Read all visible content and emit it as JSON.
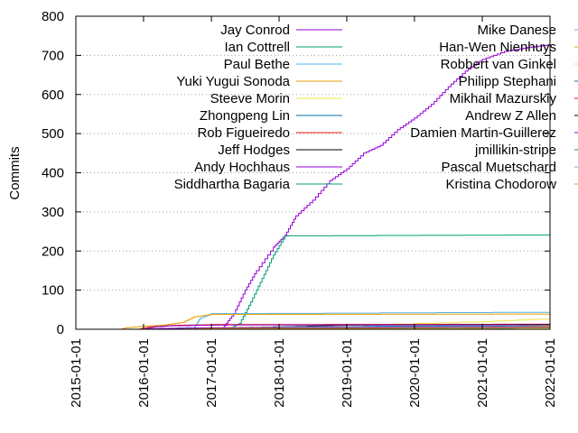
{
  "chart_data": {
    "type": "line",
    "title": "",
    "xlabel": "",
    "ylabel": "Commits",
    "x_ticks": [
      "2015-01-01",
      "2016-01-01",
      "2017-01-01",
      "2018-01-01",
      "2019-01-01",
      "2020-01-01",
      "2021-01-01",
      "2022-01-01"
    ],
    "xlim": [
      "2015-01-01",
      "2022-01-01"
    ],
    "ylim": [
      0,
      800
    ],
    "y_ticks": [
      0,
      100,
      200,
      300,
      400,
      500,
      600,
      700,
      800
    ],
    "grid": "horizontal dotted",
    "legend_placement": "top, two columns",
    "series": [
      {
        "name": "Jay Conrod",
        "color": "#9400d3",
        "points": [
          [
            "2016-01-01",
            0
          ],
          [
            "2016-09-01",
            1
          ],
          [
            "2017-03-01",
            3
          ],
          [
            "2017-05-01",
            40
          ],
          [
            "2017-07-01",
            100
          ],
          [
            "2017-09-01",
            150
          ],
          [
            "2017-12-01",
            210
          ],
          [
            "2018-02-01",
            240
          ],
          [
            "2018-04-01",
            290
          ],
          [
            "2018-07-01",
            330
          ],
          [
            "2018-10-01",
            380
          ],
          [
            "2019-01-01",
            410
          ],
          [
            "2019-04-01",
            450
          ],
          [
            "2019-07-01",
            470
          ],
          [
            "2019-10-01",
            510
          ],
          [
            "2020-01-01",
            540
          ],
          [
            "2020-04-01",
            575
          ],
          [
            "2020-07-01",
            620
          ],
          [
            "2020-10-01",
            660
          ],
          [
            "2021-01-01",
            690
          ],
          [
            "2021-05-01",
            710
          ],
          [
            "2021-09-01",
            720
          ],
          [
            "2022-01-01",
            727
          ]
        ]
      },
      {
        "name": "Ian Cottrell",
        "color": "#009e73",
        "points": [
          [
            "2016-01-01",
            0
          ],
          [
            "2017-04-01",
            0
          ],
          [
            "2017-06-01",
            15
          ],
          [
            "2017-08-01",
            70
          ],
          [
            "2017-10-01",
            130
          ],
          [
            "2017-12-01",
            190
          ],
          [
            "2018-02-01",
            238
          ],
          [
            "2018-03-01",
            239
          ],
          [
            "2022-01-01",
            241
          ]
        ]
      },
      {
        "name": "Paul Bethe",
        "color": "#56b4e9",
        "points": [
          [
            "2016-01-01",
            0
          ],
          [
            "2016-10-01",
            5
          ],
          [
            "2016-11-01",
            28
          ],
          [
            "2017-01-01",
            40
          ],
          [
            "2022-01-01",
            44
          ]
        ]
      },
      {
        "name": "Yuki Yugui Sonoda",
        "color": "#e69f00",
        "points": [
          [
            "2015-09-01",
            0
          ],
          [
            "2015-10-01",
            4
          ],
          [
            "2016-01-01",
            8
          ],
          [
            "2016-04-01",
            10
          ],
          [
            "2016-08-01",
            18
          ],
          [
            "2016-10-01",
            32
          ],
          [
            "2017-01-01",
            38
          ],
          [
            "2022-01-01",
            39
          ]
        ]
      },
      {
        "name": "Steeve Morin",
        "color": "#f0e442",
        "points": [
          [
            "2015-09-01",
            0
          ],
          [
            "2016-06-01",
            2
          ],
          [
            "2017-06-01",
            5
          ],
          [
            "2019-01-01",
            10
          ],
          [
            "2021-01-01",
            20
          ],
          [
            "2022-01-01",
            27
          ]
        ]
      },
      {
        "name": "Zhongpeng Lin",
        "color": "#0072b2",
        "points": [
          [
            "2019-01-01",
            0
          ],
          [
            "2020-01-01",
            2
          ],
          [
            "2021-03-01",
            5
          ],
          [
            "2022-01-01",
            14
          ]
        ]
      },
      {
        "name": "Rob Figueiredo",
        "color": "#e51e10",
        "points": [
          [
            "2015-12-01",
            0
          ],
          [
            "2016-02-01",
            6
          ],
          [
            "2016-06-01",
            10
          ],
          [
            "2017-01-01",
            12
          ],
          [
            "2022-01-01",
            13
          ]
        ]
      },
      {
        "name": "Jeff Hodges",
        "color": "#000000",
        "points": [
          [
            "2016-01-01",
            0
          ],
          [
            "2017-06-01",
            4
          ],
          [
            "2018-06-01",
            8
          ],
          [
            "2019-01-01",
            11
          ],
          [
            "2022-01-01",
            12
          ]
        ]
      },
      {
        "name": "Andy Hochhaus",
        "color": "#9400d3",
        "points": [
          [
            "2016-01-01",
            0
          ],
          [
            "2016-03-01",
            6
          ],
          [
            "2016-06-01",
            9
          ],
          [
            "2017-04-01",
            11
          ],
          [
            "2022-01-01",
            11
          ]
        ]
      },
      {
        "name": "Siddhartha Bagaria",
        "color": "#009e73",
        "points": [
          [
            "2016-06-01",
            0
          ],
          [
            "2017-01-01",
            2
          ],
          [
            "2018-06-01",
            6
          ],
          [
            "2019-06-01",
            8
          ],
          [
            "2022-01-01",
            9
          ]
        ]
      },
      {
        "name": "Mike Danese",
        "color": "#56b4e9",
        "points": [
          [
            "2017-04-01",
            0
          ],
          [
            "2017-06-01",
            3
          ],
          [
            "2018-02-01",
            6
          ],
          [
            "2022-01-01",
            8
          ]
        ]
      },
      {
        "name": "Han-Wen Nienhuys",
        "color": "#e69f00",
        "points": [
          [
            "2019-01-01",
            0
          ],
          [
            "2020-06-01",
            3
          ],
          [
            "2021-06-01",
            6
          ],
          [
            "2022-01-01",
            8
          ]
        ]
      },
      {
        "name": "Robbert van Ginkel",
        "color": "#f0e442",
        "points": [
          [
            "2020-01-01",
            0
          ],
          [
            "2021-01-01",
            4
          ],
          [
            "2022-01-01",
            7
          ]
        ]
      },
      {
        "name": "Philipp Stephani",
        "color": "#0072b2",
        "points": [
          [
            "2020-06-01",
            0
          ],
          [
            "2021-06-01",
            3
          ],
          [
            "2022-01-01",
            6
          ]
        ]
      },
      {
        "name": "Mikhail Mazurskiy",
        "color": "#e51e10",
        "points": [
          [
            "2017-10-01",
            0
          ],
          [
            "2018-06-01",
            3
          ],
          [
            "2019-06-01",
            5
          ],
          [
            "2022-01-01",
            6
          ]
        ]
      },
      {
        "name": "Andrew Z Allen",
        "color": "#000000",
        "points": [
          [
            "2018-06-01",
            0
          ],
          [
            "2019-06-01",
            3
          ],
          [
            "2022-01-01",
            5
          ]
        ]
      },
      {
        "name": "Damien Martin-Guillerez",
        "color": "#9400d3",
        "points": [
          [
            "2016-01-01",
            0
          ],
          [
            "2016-04-01",
            2
          ],
          [
            "2017-01-01",
            4
          ],
          [
            "2022-01-01",
            5
          ]
        ]
      },
      {
        "name": "jmillikin-stripe",
        "color": "#009e73",
        "points": [
          [
            "2019-06-01",
            0
          ],
          [
            "2020-03-01",
            3
          ],
          [
            "2022-01-01",
            4
          ]
        ]
      },
      {
        "name": "Pascal Muetschard",
        "color": "#56b4e9",
        "points": [
          [
            "2017-01-01",
            0
          ],
          [
            "2017-06-01",
            2
          ],
          [
            "2022-01-01",
            4
          ]
        ]
      },
      {
        "name": "Kristina Chodorow",
        "color": "#e69f00",
        "points": [
          [
            "2016-06-01",
            0
          ],
          [
            "2017-01-01",
            2
          ],
          [
            "2022-01-01",
            3
          ]
        ]
      }
    ]
  }
}
